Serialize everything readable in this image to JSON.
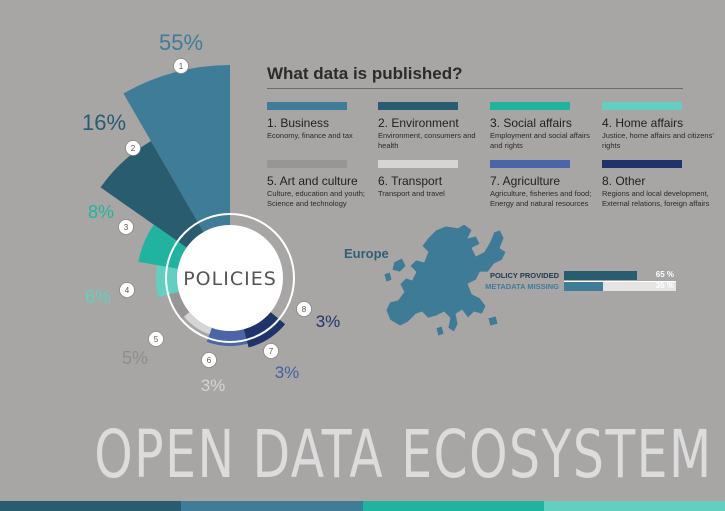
{
  "chart_data": {
    "type": "pie",
    "center_label": "POLICIES",
    "slices": [
      {
        "index": "1",
        "label": "55%",
        "value": 55,
        "color": "#3f7c98",
        "label_color": "#3f7c98"
      },
      {
        "index": "2",
        "label": "16%",
        "value": 16,
        "color": "#2a5c70",
        "label_color": "#2a5c70"
      },
      {
        "index": "3",
        "label": "8%",
        "value": 8,
        "color": "#22b3a0",
        "label_color": "#22b3a0"
      },
      {
        "index": "4",
        "label": "6%",
        "value": 6,
        "color": "#62cfc0",
        "label_color": "#62cfc0"
      },
      {
        "index": "5",
        "label": "5%",
        "value": 5,
        "color": "#979595",
        "label_color": "#8e8c8c"
      },
      {
        "index": "6",
        "label": "3%",
        "value": 3,
        "color": "#d6d5d5",
        "label_color": "#d6d5d5"
      },
      {
        "index": "7",
        "label": "3%",
        "value": 3,
        "color": "#4a66a6",
        "label_color": "#44609f"
      },
      {
        "index": "8",
        "label": "3%",
        "value": 3,
        "color": "#1f346b",
        "label_color": "#1f346b"
      }
    ]
  },
  "legend": {
    "title": "What data is published?",
    "items": [
      {
        "name": "1. Business",
        "desc": "Economy, finance and tax",
        "color": "#3f7c98"
      },
      {
        "name": "2. Environment",
        "desc": "Environment, consumers and health",
        "color": "#2a5c70"
      },
      {
        "name": "3. Social affairs",
        "desc": "Employment and social affairs and rights",
        "color": "#22b3a0"
      },
      {
        "name": "4. Home affairs",
        "desc": "Justice, home affairs and citizens' rights",
        "color": "#62cfc0"
      },
      {
        "name": "5. Art and culture",
        "desc": "Culture, education and youth; Science and technology",
        "color": "#979595"
      },
      {
        "name": "6. Transport",
        "desc": "Transport and travel",
        "color": "#d6d5d5"
      },
      {
        "name": "7. Agriculture",
        "desc": "Agriculture, fisheries and food; Energy and natural resources",
        "color": "#4a66a6"
      },
      {
        "name": "8. Other",
        "desc": "Regions and local development, External relations, foreign affairs",
        "color": "#1f346b"
      }
    ]
  },
  "europe": {
    "label": "Europe",
    "stats": [
      {
        "label": "POLICY PROVIDED",
        "value_text": "65 %",
        "value": 0.65,
        "color": "#2a5c70",
        "label_color": "#1f3a4d"
      },
      {
        "label": "METADATA MISSING",
        "value_text": "35 %",
        "value": 0.35,
        "color": "#3f7c98",
        "label_color": "#3f7c98"
      }
    ],
    "map_color": "#3d7b96"
  },
  "footer": {
    "title": "OPEN DATA ECOSYSTEM",
    "strip_colors": [
      "#2a5c70",
      "#3f7c98",
      "#22b3a0",
      "#62cfc0"
    ]
  }
}
